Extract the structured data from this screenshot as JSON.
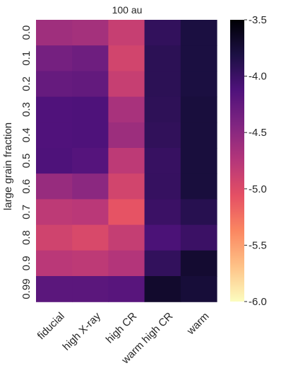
{
  "chart_data": {
    "type": "heatmap",
    "title": "100 au",
    "xlabel": "",
    "ylabel": "large grain fraction",
    "categories": [
      "fiducial",
      "high X-ray",
      "high CR",
      "warm high CR",
      "warm"
    ],
    "rows": [
      "0.0",
      "0.1",
      "0.2",
      "0.3",
      "0.4",
      "0.5",
      "0.6",
      "0.7",
      "0.8",
      "0.9",
      "0.99"
    ],
    "values": [
      [
        -4.62,
        -4.65,
        -4.86,
        -3.95,
        -3.8
      ],
      [
        -4.36,
        -4.32,
        -4.93,
        -3.91,
        -3.8
      ],
      [
        -4.27,
        -4.25,
        -4.86,
        -3.91,
        -3.8
      ],
      [
        -4.13,
        -4.12,
        -4.67,
        -3.92,
        -3.78
      ],
      [
        -4.13,
        -4.12,
        -4.6,
        -3.94,
        -3.78
      ],
      [
        -4.12,
        -4.16,
        -4.8,
        -3.98,
        -3.78
      ],
      [
        -4.57,
        -4.5,
        -4.93,
        -3.97,
        -3.78
      ],
      [
        -4.8,
        -4.78,
        -5.08,
        -4.0,
        -3.88
      ],
      [
        -4.92,
        -4.98,
        -4.85,
        -4.1,
        -4.0
      ],
      [
        -4.78,
        -4.8,
        -4.74,
        -3.95,
        -3.72
      ],
      [
        -4.2,
        -4.2,
        -4.18,
        -3.7,
        -3.76
      ]
    ],
    "colorbar": {
      "min": -6.0,
      "max": -3.5,
      "ticks": [
        "-3.5",
        "-4.0",
        "-4.5",
        "-5.0",
        "-5.5",
        "-6.0"
      ],
      "tick_values": [
        -3.5,
        -4.0,
        -4.5,
        -5.0,
        -5.5,
        -6.0
      ],
      "colormap": "magma"
    },
    "colormap_stops": [
      "#000004",
      "#1c1044",
      "#4f127b",
      "#812581",
      "#b5367a",
      "#e55064",
      "#fb8761",
      "#fec287",
      "#fcfdbf"
    ],
    "grid": false
  }
}
